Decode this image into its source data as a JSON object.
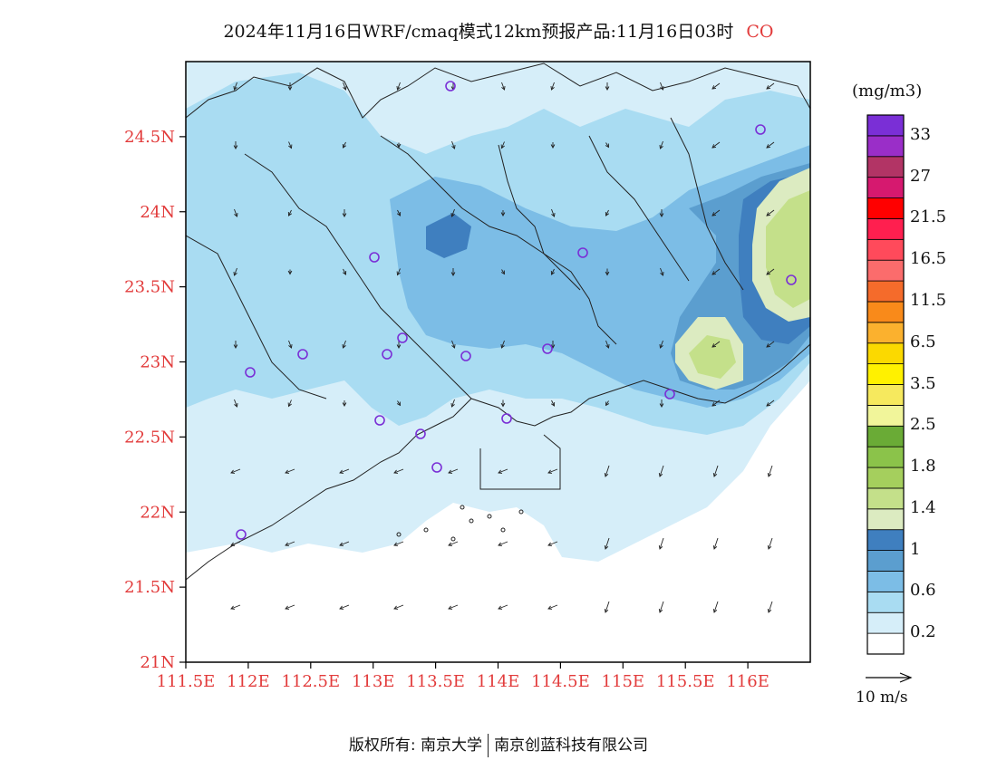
{
  "title": {
    "text": "2024年11月16日WRF/cmaq模式12km预报产品:11月16日03时",
    "species": "CO",
    "species_color": "#e23b3b"
  },
  "footer": {
    "copyright": "版权所有: 南京大学",
    "company": "南京创蓝科技有限公司"
  },
  "map": {
    "lat_ticks": [
      "24.5N",
      "24N",
      "23.5N",
      "23N",
      "22.5N",
      "22N",
      "21.5N",
      "21N"
    ],
    "lon_ticks": [
      "111.5E",
      "112E",
      "112.5E",
      "113E",
      "113.5E",
      "114E",
      "114.5E",
      "115E",
      "115.5E",
      "116E"
    ],
    "tick_color": "#e23b3b",
    "lat_range": [
      21,
      25
    ],
    "lon_range": [
      111.5,
      116.5
    ]
  },
  "colorbar": {
    "unit": "(mg/m3)",
    "colors": [
      "#ffffff",
      "#d6eef9",
      "#a9dcf2",
      "#7cbde6",
      "#5b9ecf",
      "#3f7fbf",
      "#dcebc1",
      "#c4e08a",
      "#a5cf5d",
      "#8bc34a",
      "#6aab36",
      "#f1f59a",
      "#f6e95e",
      "#fff100",
      "#fbd900",
      "#fbb12e",
      "#f98a1a",
      "#f56b2b",
      "#fb6c6c",
      "#ff4a5b",
      "#ff1f4f",
      "#ff0000",
      "#d6196f",
      "#b23465",
      "#9a2ec8",
      "#7a2fd6"
    ],
    "labels": [
      "0.2",
      "0.6",
      "1",
      "1.4",
      "1.8",
      "2.5",
      "3.5",
      "6.5",
      "11.5",
      "16.5",
      "21.5",
      "27",
      "33"
    ]
  },
  "wind_reference": {
    "label": "10 m/s"
  }
}
